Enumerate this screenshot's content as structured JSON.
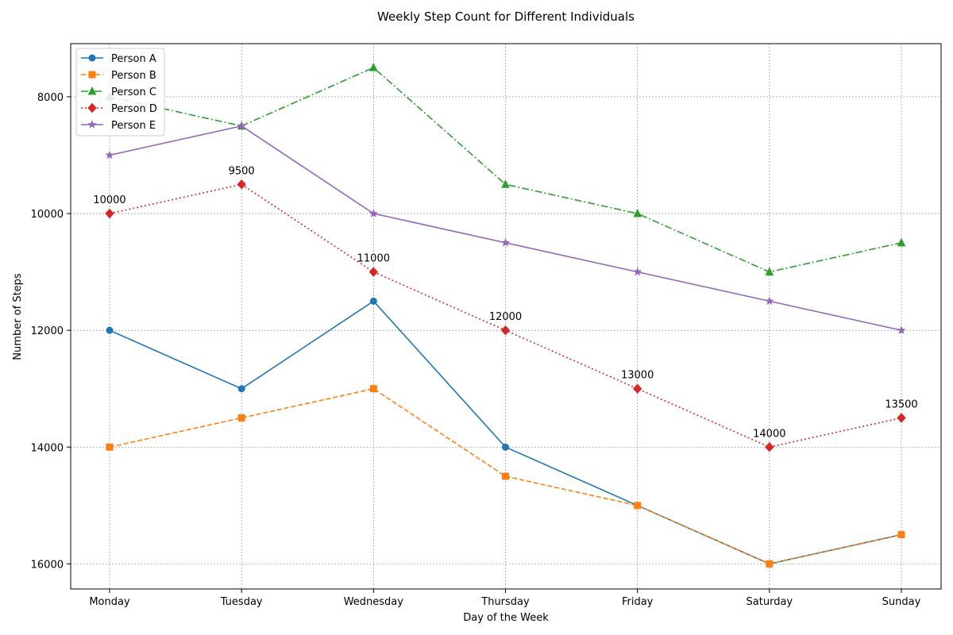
{
  "chart_data": {
    "type": "line",
    "title": "Weekly Step Count for Different Individuals",
    "xlabel": "Day of the Week",
    "ylabel": "Number of Steps",
    "categories": [
      "Monday",
      "Tuesday",
      "Wednesday",
      "Thursday",
      "Friday",
      "Saturday",
      "Sunday"
    ],
    "ylim": [
      16430,
      7090
    ],
    "y_inverted": true,
    "yticks": [
      8000,
      10000,
      12000,
      14000,
      16000
    ],
    "grid": true,
    "legend_position": "top-left",
    "series": [
      {
        "name": "Person A",
        "values": [
          12000,
          13000,
          11500,
          14000,
          15000,
          16000,
          15500
        ],
        "color": "#1f77b4",
        "line_style": "solid",
        "marker": "circle"
      },
      {
        "name": "Person B",
        "values": [
          14000,
          13500,
          13000,
          14500,
          15000,
          16000,
          15500
        ],
        "color": "#ff7f0e",
        "line_style": "dashed",
        "marker": "square"
      },
      {
        "name": "Person C",
        "values": [
          8000,
          8500,
          7500,
          9500,
          10000,
          11000,
          10500
        ],
        "color": "#2ca02c",
        "line_style": "dashdot",
        "marker": "triangle"
      },
      {
        "name": "Person D",
        "values": [
          10000,
          9500,
          11000,
          12000,
          13000,
          14000,
          13500
        ],
        "color": "#d62728",
        "line_style": "dotted",
        "marker": "diamond",
        "annotated": true
      },
      {
        "name": "Person E",
        "values": [
          9000,
          8500,
          10000,
          10500,
          11000,
          11500,
          12000
        ],
        "color": "#9467bd",
        "line_style": "solid",
        "marker": "star"
      }
    ]
  }
}
